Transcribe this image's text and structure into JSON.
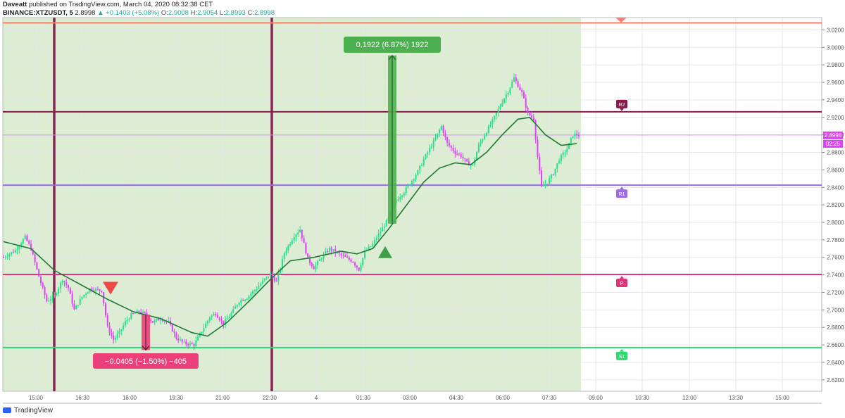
{
  "header": {
    "user": "Daveatt",
    "published": "published on TradingView.com, March 04, 2020 08:32:38 CET",
    "symbol": "BINANCE:XTZUSDT, 5",
    "last": "2.8998",
    "arrow": "▲",
    "change": "+0.1403 (+5.08%)",
    "open_label": "O:",
    "open": "2.9008",
    "high_label": "H:",
    "high": "2.9054",
    "low_label": "L:",
    "low": "2.8993",
    "close_label": "C:",
    "close": "2.8998"
  },
  "footer": {
    "brand": "TradingView"
  },
  "colors": {
    "up": "#26e08a",
    "down": "#e040fb",
    "ema": "#1e7a34",
    "shade": "#dcedd4",
    "r2": "#8a1a4d",
    "r1": "#9c6ce0",
    "p": "#e0357a",
    "s1": "#2fdc74",
    "top_line": "#ff7f6b",
    "vline": "#8a2451",
    "pos_box": "#4caf50",
    "neg_box": "#ec407a"
  },
  "chart_data": {
    "type": "candlestick",
    "y_ticks": [
      "3.0200",
      "3.0000",
      "2.9800",
      "2.9600",
      "2.9400",
      "2.9200",
      "2.9000",
      "2.8800",
      "2.8600",
      "2.8400",
      "2.8200",
      "2.8000",
      "2.7800",
      "2.7600",
      "2.7400",
      "2.7200",
      "2.7000",
      "2.6800",
      "2.6600",
      "2.6400",
      "2.6200"
    ],
    "ylim": [
      2.607,
      3.034
    ],
    "x_ticks": [
      "15:00",
      "16:30",
      "18:00",
      "19:30",
      "21:00",
      "22:30",
      "4",
      "01:30",
      "03:00",
      "04:30",
      "06:00",
      "07:30",
      "09:00",
      "10:30",
      "12:00",
      "13:30",
      "15:00"
    ],
    "price_label": "2.8998",
    "countdown_label": "02:25",
    "levels": [
      {
        "name": "R2",
        "value": 2.9263
      },
      {
        "name": "R1",
        "value": 2.8425
      },
      {
        "name": "P",
        "value": 2.7405
      },
      {
        "name": "S1",
        "value": 2.657
      },
      {
        "name": "",
        "value": 3.028
      }
    ],
    "measures": [
      {
        "label": "0.1922 (6.87%) 1922",
        "from": 2.7985,
        "to": 2.9907,
        "direction": "up"
      },
      {
        "label": "−0.0405 (−1.50%) −405",
        "from": 2.6946,
        "to": 2.6541,
        "direction": "down"
      }
    ],
    "signals": [
      {
        "type": "sell",
        "price": 2.7232
      },
      {
        "type": "buy",
        "price": 2.7632
      }
    ],
    "vertical_markers": [
      "15:00 (approx.)",
      "22:30"
    ],
    "ema_period": "unlabeled",
    "grid": true,
    "anchors": [
      [
        0,
        2.76
      ],
      [
        6,
        2.768
      ],
      [
        11,
        2.783
      ],
      [
        14,
        2.77
      ],
      [
        18,
        2.738
      ],
      [
        22,
        2.71
      ],
      [
        26,
        2.716
      ],
      [
        30,
        2.735
      ],
      [
        33,
        2.725
      ],
      [
        36,
        2.7
      ],
      [
        40,
        2.715
      ],
      [
        44,
        2.724
      ],
      [
        50,
        2.722
      ],
      [
        53,
        2.68
      ],
      [
        56,
        2.666
      ],
      [
        59,
        2.674
      ],
      [
        62,
        2.686
      ],
      [
        65,
        2.694
      ],
      [
        69,
        2.698
      ],
      [
        72,
        2.695
      ],
      [
        76,
        2.686
      ],
      [
        80,
        2.69
      ],
      [
        84,
        2.686
      ],
      [
        88,
        2.668
      ],
      [
        92,
        2.662
      ],
      [
        97,
        2.66
      ],
      [
        101,
        2.676
      ],
      [
        105,
        2.692
      ],
      [
        108,
        2.696
      ],
      [
        112,
        2.684
      ],
      [
        116,
        2.696
      ],
      [
        120,
        2.71
      ],
      [
        124,
        2.714
      ],
      [
        129,
        2.725
      ],
      [
        133,
        2.735
      ],
      [
        136,
        2.741
      ],
      [
        139,
        2.732
      ],
      [
        143,
        2.765
      ],
      [
        148,
        2.785
      ],
      [
        151,
        2.792
      ],
      [
        155,
        2.758
      ],
      [
        158,
        2.748
      ],
      [
        162,
        2.76
      ],
      [
        166,
        2.77
      ],
      [
        170,
        2.765
      ],
      [
        174,
        2.76
      ],
      [
        178,
        2.755
      ],
      [
        181,
        2.746
      ],
      [
        184,
        2.766
      ],
      [
        188,
        2.775
      ],
      [
        192,
        2.79
      ],
      [
        196,
        2.804
      ],
      [
        198,
        2.818
      ],
      [
        201,
        2.828
      ],
      [
        204,
        2.835
      ],
      [
        208,
        2.848
      ],
      [
        211,
        2.858
      ],
      [
        214,
        2.872
      ],
      [
        217,
        2.884
      ],
      [
        220,
        2.896
      ],
      [
        223,
        2.91
      ],
      [
        226,
        2.89
      ],
      [
        230,
        2.88
      ],
      [
        233,
        2.876
      ],
      [
        236,
        2.868
      ],
      [
        239,
        2.865
      ],
      [
        242,
        2.888
      ],
      [
        246,
        2.904
      ],
      [
        250,
        2.92
      ],
      [
        254,
        2.938
      ],
      [
        257,
        2.95
      ],
      [
        260,
        2.965
      ],
      [
        264,
        2.948
      ],
      [
        267,
        2.925
      ],
      [
        270,
        2.918
      ],
      [
        272,
        2.875
      ],
      [
        274,
        2.84
      ],
      [
        277,
        2.846
      ],
      [
        280,
        2.856
      ],
      [
        283,
        2.872
      ],
      [
        287,
        2.884
      ],
      [
        290,
        2.9
      ],
      [
        293,
        2.9
      ]
    ],
    "ema_points": [
      [
        0,
        2.778
      ],
      [
        14,
        2.77
      ],
      [
        26,
        2.745
      ],
      [
        40,
        2.728
      ],
      [
        53,
        2.712
      ],
      [
        66,
        2.698
      ],
      [
        80,
        2.69
      ],
      [
        96,
        2.674
      ],
      [
        104,
        2.67
      ],
      [
        114,
        2.686
      ],
      [
        126,
        2.712
      ],
      [
        136,
        2.735
      ],
      [
        146,
        2.756
      ],
      [
        158,
        2.76
      ],
      [
        172,
        2.767
      ],
      [
        180,
        2.764
      ],
      [
        188,
        2.77
      ],
      [
        196,
        2.792
      ],
      [
        206,
        2.822
      ],
      [
        214,
        2.846
      ],
      [
        222,
        2.862
      ],
      [
        230,
        2.868
      ],
      [
        238,
        2.866
      ],
      [
        246,
        2.88
      ],
      [
        254,
        2.9
      ],
      [
        262,
        2.918
      ],
      [
        268,
        2.92
      ],
      [
        276,
        2.9
      ],
      [
        284,
        2.888
      ],
      [
        292,
        2.89
      ]
    ],
    "x_domain": [
      0,
      293
    ]
  }
}
